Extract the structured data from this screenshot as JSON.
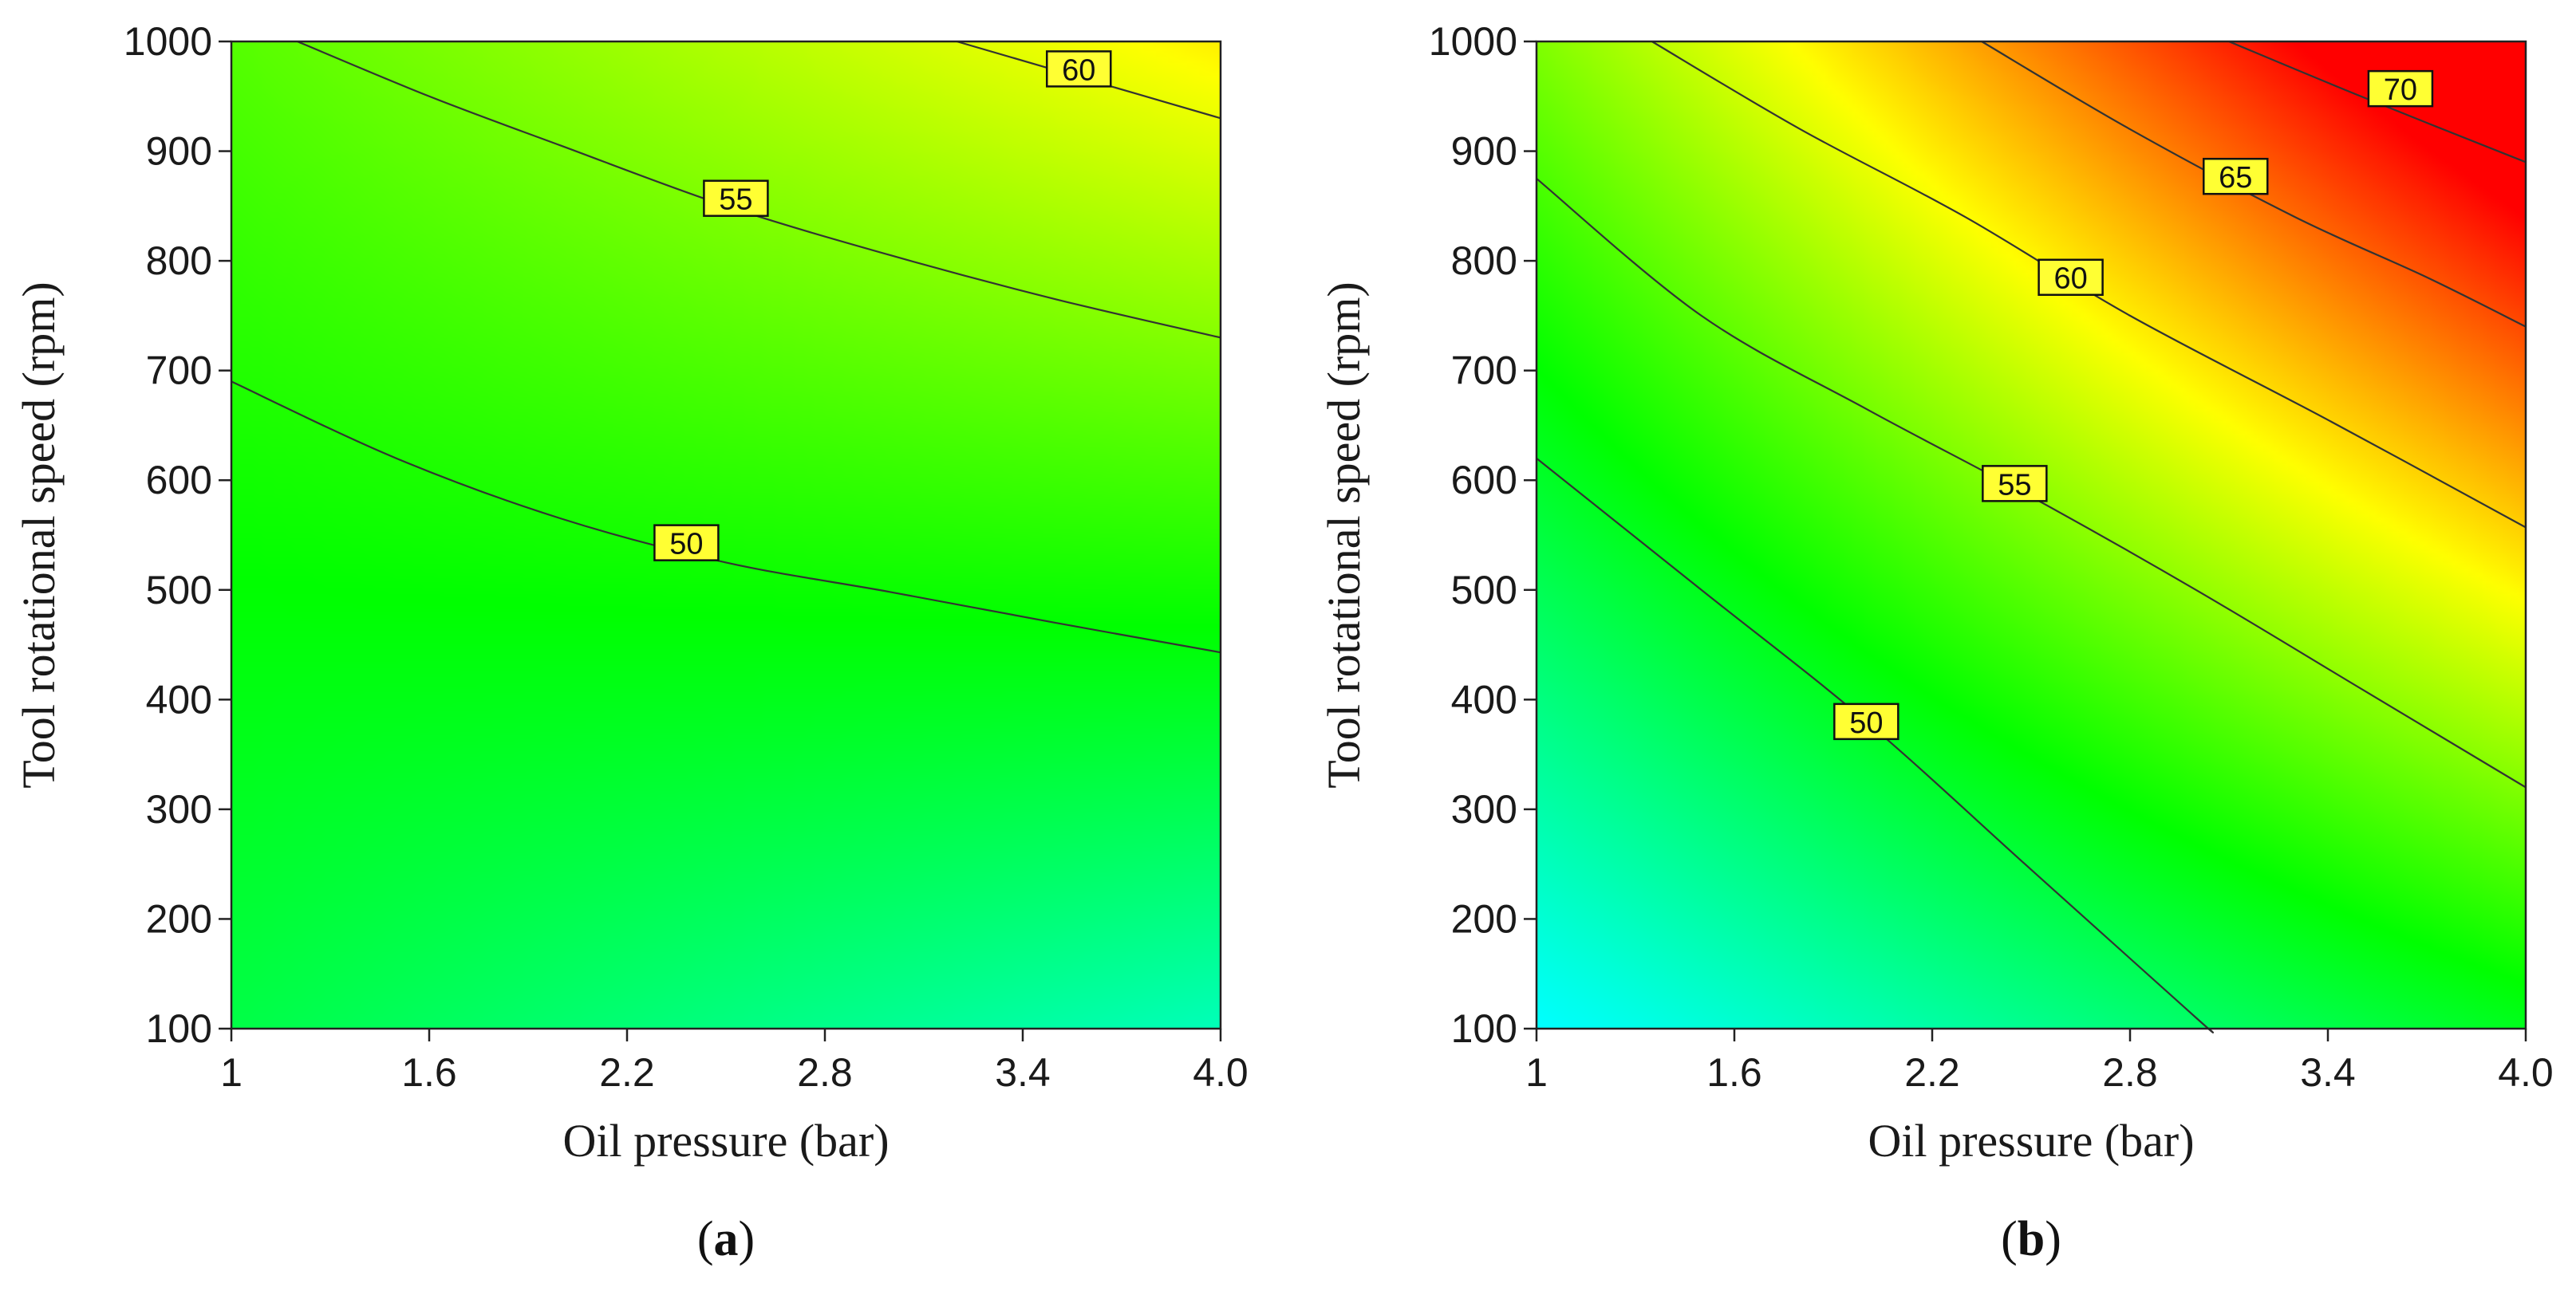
{
  "chart_data": [
    {
      "type": "heatmap",
      "subtype": "contour",
      "panel_label": "a",
      "xlabel": "Oil pressure (bar)",
      "ylabel": "Tool rotational speed (rpm)",
      "xlim": [
        1,
        4
      ],
      "ylim": [
        100,
        1000
      ],
      "xticks": [
        "1",
        "1.6",
        "2.2",
        "2.8",
        "3.4",
        "4.0"
      ],
      "xtick_values": [
        1,
        1.6,
        2.2,
        2.8,
        3.4,
        4.0
      ],
      "yticks": [
        "100",
        "200",
        "300",
        "400",
        "500",
        "600",
        "700",
        "800",
        "900",
        "1000"
      ],
      "ytick_values": [
        100,
        200,
        300,
        400,
        500,
        600,
        700,
        800,
        900,
        1000
      ],
      "grid": false,
      "colormap": [
        "#00ffff",
        "#00ff00",
        "#ffff00",
        "#ff0000"
      ],
      "surface": {
        "x": [
          1,
          4
        ],
        "y": [
          100,
          1000
        ],
        "z": [
          [
            51.5,
            47.5
          ],
          [
            57.0,
            63.5
          ]
        ]
      },
      "contours": [
        {
          "level": "50",
          "points": [
            [
              1.0,
              690
            ],
            [
              1.5,
              620
            ],
            [
              2.0,
              565
            ],
            [
              2.5,
              525
            ],
            [
              3.0,
              498
            ],
            [
              3.5,
              470
            ],
            [
              4.0,
              443
            ]
          ],
          "label_at": [
            2.38,
            543
          ]
        },
        {
          "level": "55",
          "points": [
            [
              1.2,
              1000
            ],
            [
              1.6,
              950
            ],
            [
              2.0,
              905
            ],
            [
              2.5,
              850
            ],
            [
              3.0,
              805
            ],
            [
              3.5,
              765
            ],
            [
              4.0,
              730
            ]
          ],
          "label_at": [
            2.53,
            857
          ]
        },
        {
          "level": "60",
          "points": [
            [
              3.2,
              1000
            ],
            [
              3.6,
              965
            ],
            [
              4.0,
              930
            ]
          ],
          "label_at": [
            3.57,
            975
          ]
        }
      ]
    },
    {
      "type": "heatmap",
      "subtype": "contour",
      "panel_label": "b",
      "xlabel": "Oil pressure (bar)",
      "ylabel": "Tool rotational speed (rpm)",
      "xlim": [
        1,
        4
      ],
      "ylim": [
        100,
        1000
      ],
      "xticks": [
        "1",
        "1.6",
        "2.2",
        "2.8",
        "3.4",
        "4.0"
      ],
      "xtick_values": [
        1,
        1.6,
        2.2,
        2.8,
        3.4,
        4.0
      ],
      "yticks": [
        "100",
        "200",
        "300",
        "400",
        "500",
        "600",
        "700",
        "800",
        "900",
        "1000"
      ],
      "ytick_values": [
        100,
        200,
        300,
        400,
        500,
        600,
        700,
        800,
        900,
        1000
      ],
      "grid": false,
      "colormap": [
        "#00ffff",
        "#00ff00",
        "#ffff00",
        "#ff0000"
      ],
      "surface": {
        "x": [
          1,
          4
        ],
        "y": [
          100,
          1000
        ],
        "z": [
          [
            45.0,
            53.0
          ],
          [
            58.5,
            76.0
          ]
        ]
      },
      "contours": [
        {
          "level": "50",
          "points": [
            [
              1.0,
              620
            ],
            [
              1.5,
              500
            ],
            [
              2.0,
              380
            ],
            [
              2.5,
              245
            ],
            [
              3.0,
              110
            ],
            [
              3.04,
              100
            ]
          ],
          "label_at": [
            2.0,
            380
          ]
        },
        {
          "level": "55",
          "points": [
            [
              1.0,
              875
            ],
            [
              1.5,
              750
            ],
            [
              2.0,
              665
            ],
            [
              2.5,
              585
            ],
            [
              3.0,
              500
            ],
            [
              3.5,
              410
            ],
            [
              4.0,
              320
            ]
          ],
          "label_at": [
            2.45,
            597
          ]
        },
        {
          "level": "60",
          "points": [
            [
              1.35,
              1000
            ],
            [
              1.8,
              920
            ],
            [
              2.3,
              840
            ],
            [
              2.8,
              750
            ],
            [
              3.4,
              655
            ],
            [
              4.0,
              557
            ]
          ],
          "label_at": [
            2.62,
            785
          ]
        },
        {
          "level": "65",
          "points": [
            [
              2.35,
              1000
            ],
            [
              2.8,
              920
            ],
            [
              3.3,
              840
            ],
            [
              3.7,
              785
            ],
            [
              4.0,
              740
            ]
          ],
          "label_at": [
            3.12,
            877
          ]
        },
        {
          "level": "70",
          "points": [
            [
              3.1,
              1000
            ],
            [
              3.5,
              950
            ],
            [
              4.0,
              890
            ]
          ],
          "label_at": [
            3.62,
            957
          ]
        }
      ]
    }
  ]
}
